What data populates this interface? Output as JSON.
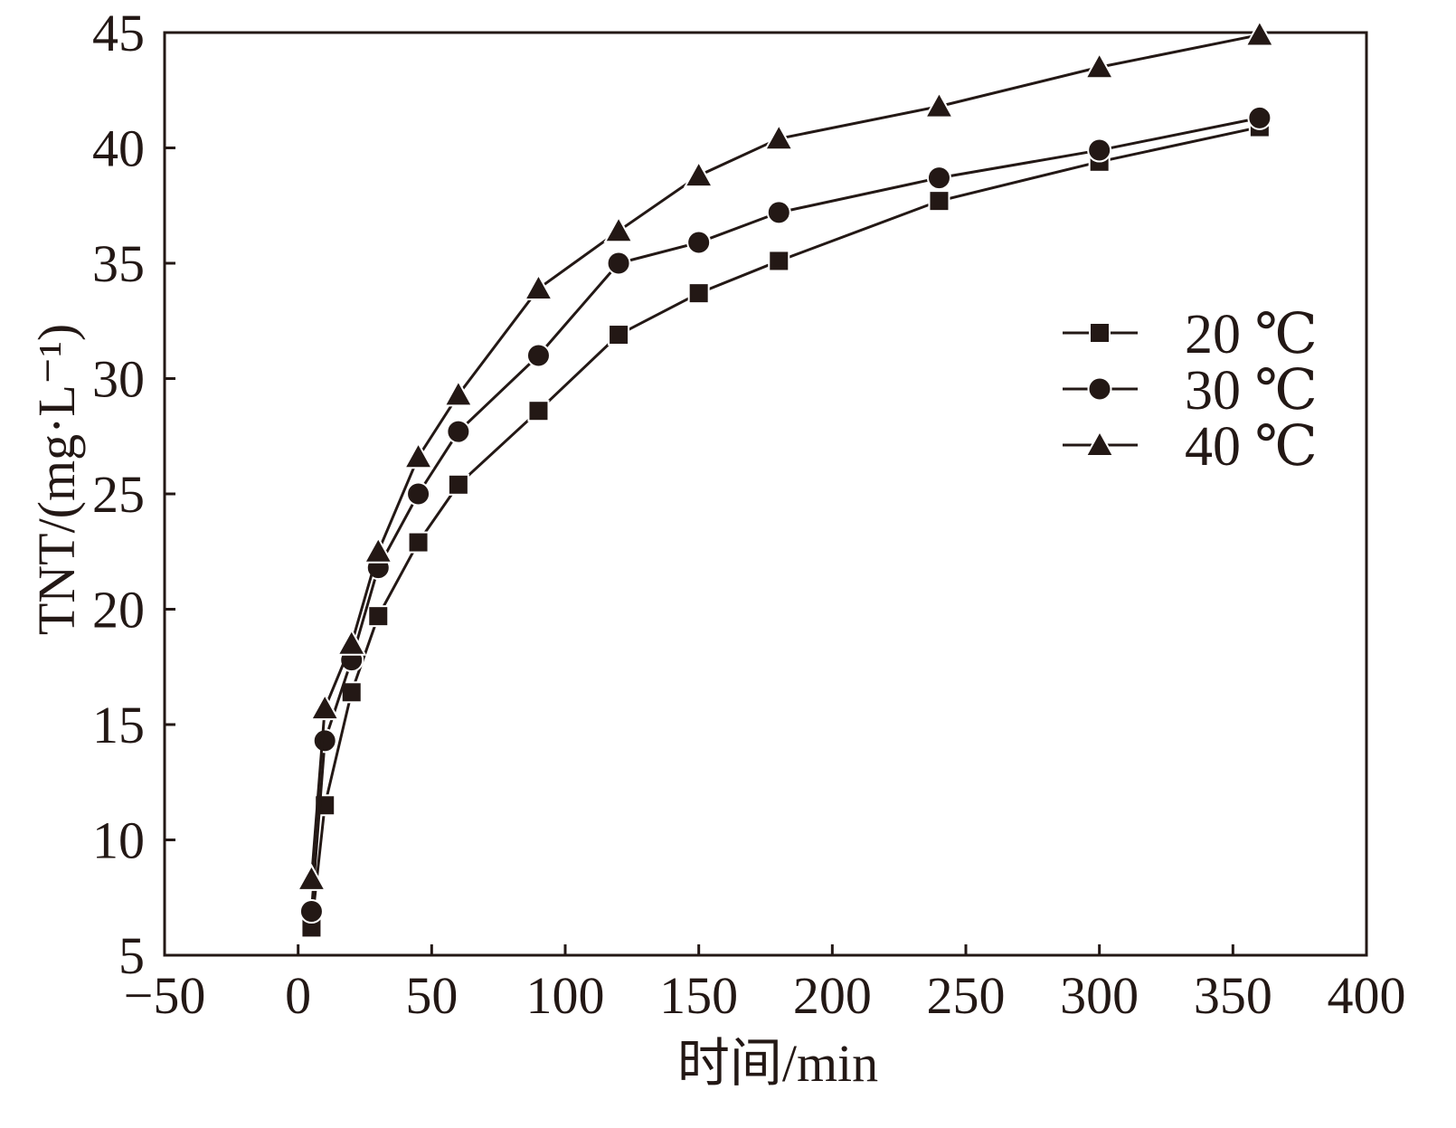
{
  "chart_data": {
    "type": "line",
    "title": "",
    "xlabel": "时间/min",
    "ylabel": "TNT/(mg·L⁻¹)",
    "xlim": [
      -50,
      400
    ],
    "ylim": [
      5,
      45
    ],
    "xticks": [
      -50,
      0,
      50,
      100,
      150,
      200,
      250,
      300,
      350,
      400
    ],
    "yticks": [
      5,
      10,
      15,
      20,
      25,
      30,
      35,
      40,
      45
    ],
    "xtick_labels": [
      "−50",
      "0",
      "50",
      "100",
      "150",
      "200",
      "250",
      "300",
      "350",
      "400"
    ],
    "ytick_labels": [
      "5",
      "10",
      "15",
      "20",
      "25",
      "30",
      "35",
      "40",
      "45"
    ],
    "grid": false,
    "legend_position": "right-upper",
    "x": [
      5,
      10,
      20,
      30,
      45,
      60,
      90,
      120,
      150,
      180,
      240,
      300,
      360
    ],
    "series": [
      {
        "name": "20 ℃",
        "marker": "square",
        "values": [
          6.2,
          11.5,
          16.4,
          19.7,
          22.9,
          25.4,
          28.6,
          31.9,
          33.7,
          35.1,
          37.7,
          39.4,
          40.9
        ]
      },
      {
        "name": "30 ℃",
        "marker": "circle",
        "values": [
          6.9,
          14.3,
          17.8,
          21.8,
          25.0,
          27.7,
          31.0,
          35.0,
          35.9,
          37.2,
          38.7,
          39.9,
          41.3
        ]
      },
      {
        "name": "40 ℃",
        "marker": "triangle",
        "values": [
          8.3,
          15.7,
          18.5,
          22.5,
          26.6,
          29.3,
          33.9,
          36.4,
          38.8,
          40.4,
          41.8,
          43.5,
          44.9
        ]
      }
    ],
    "color": "#231815"
  }
}
